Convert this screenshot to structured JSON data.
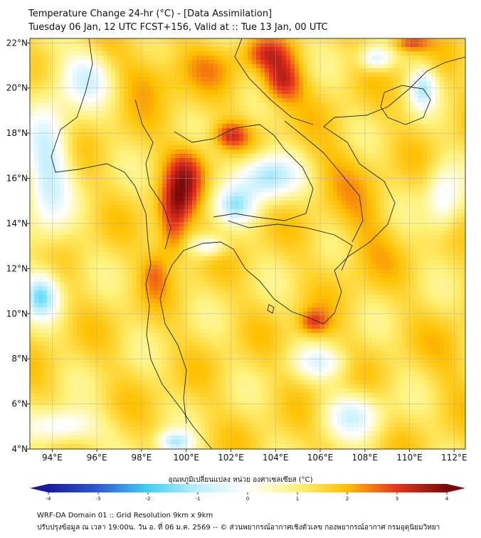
{
  "title_line1": "Temperature Change 24-hr (°C) - [Data Assimilation]",
  "title_line2": "Tuesday 06 Jan, 12 UTC FCST+156, Valid at :: Tue 13 Jan, 00 UTC",
  "axis": {
    "lon_min": 93,
    "lon_max": 112.5,
    "lat_min": 4,
    "lat_max": 22.2,
    "lon_ticks": [
      "94°E",
      "96°E",
      "98°E",
      "100°E",
      "102°E",
      "104°E",
      "106°E",
      "108°E",
      "110°E",
      "112°E"
    ],
    "lon_values": [
      94,
      96,
      98,
      100,
      102,
      104,
      106,
      108,
      110,
      112
    ],
    "lat_ticks": [
      "4°N",
      "6°N",
      "8°N",
      "10°N",
      "12°N",
      "14°N",
      "16°N",
      "18°N",
      "20°N",
      "22°N"
    ],
    "lat_values": [
      4,
      6,
      8,
      10,
      12,
      14,
      16,
      18,
      20,
      22
    ],
    "grid": true
  },
  "colorbar": {
    "label": "อุณหภูมิเปลี่ยนแปลง หน่วย องศาเซลเซียส (°C)",
    "min": -4,
    "max": 4,
    "tick_labels": [
      "-4",
      "-3",
      "-2",
      "-1",
      "0",
      "1",
      "2",
      "3",
      "4"
    ],
    "tick_values": [
      -4,
      -3,
      -2,
      -1,
      0,
      1,
      2,
      3,
      4
    ],
    "extend": "both"
  },
  "colors": {
    "deep_blue": "#1a1a9e",
    "cyan": "#3dd3f0",
    "light_cyan": "#bfefff",
    "white": "#ffffff",
    "yellow": "#ffe03a",
    "orange": "#ffa500",
    "red": "#e8321e",
    "dark_red": "#7a0a0a"
  },
  "field": {
    "background_value": 1.4,
    "features": [
      {
        "lon": 100.0,
        "lat": 16.3,
        "value": 3.1,
        "sx": 0.9,
        "sy": 1.2
      },
      {
        "lon": 99.4,
        "lat": 13.6,
        "value": 3.0,
        "sx": 0.7,
        "sy": 1.3
      },
      {
        "lon": 99.6,
        "lat": 15.0,
        "value": 2.6,
        "sx": 0.8,
        "sy": 1.0
      },
      {
        "lon": 102.0,
        "lat": 17.9,
        "value": 3.0,
        "sx": 0.8,
        "sy": 0.6
      },
      {
        "lon": 104.3,
        "lat": 20.3,
        "value": 3.3,
        "sx": 0.9,
        "sy": 1.0
      },
      {
        "lon": 103.6,
        "lat": 21.5,
        "value": 2.6,
        "sx": 1.0,
        "sy": 0.7
      },
      {
        "lon": 98.6,
        "lat": 11.8,
        "value": 2.3,
        "sx": 0.6,
        "sy": 1.0
      },
      {
        "lon": 98.3,
        "lat": 20.5,
        "value": 2.2,
        "sx": 1.4,
        "sy": 1.2
      },
      {
        "lon": 101.0,
        "lat": 21.0,
        "value": 2.0,
        "sx": 1.5,
        "sy": 1.0
      },
      {
        "lon": 105.7,
        "lat": 9.6,
        "value": 2.9,
        "sx": 0.7,
        "sy": 0.6
      },
      {
        "lon": 108.0,
        "lat": 13.5,
        "value": 2.0,
        "sx": 1.2,
        "sy": 2.0
      },
      {
        "lon": 106.5,
        "lat": 16.5,
        "value": 1.9,
        "sx": 1.5,
        "sy": 1.5
      },
      {
        "lon": 103.6,
        "lat": 16.1,
        "value": -1.3,
        "sx": 1.4,
        "sy": 1.0
      },
      {
        "lon": 102.2,
        "lat": 14.8,
        "value": -0.6,
        "sx": 0.9,
        "sy": 0.8
      },
      {
        "lon": 101.0,
        "lat": 13.0,
        "value": -0.3,
        "sx": 0.8,
        "sy": 0.5
      },
      {
        "lon": 93.5,
        "lat": 10.8,
        "value": -1.2,
        "sx": 0.8,
        "sy": 1.0
      },
      {
        "lon": 93.8,
        "lat": 16.5,
        "value": -0.8,
        "sx": 1.0,
        "sy": 3.0
      },
      {
        "lon": 95.5,
        "lat": 20.5,
        "value": -0.4,
        "sx": 1.2,
        "sy": 1.2
      },
      {
        "lon": 94.5,
        "lat": 5.0,
        "value": -0.5,
        "sx": 1.5,
        "sy": 0.8
      },
      {
        "lon": 99.5,
        "lat": 4.3,
        "value": -0.9,
        "sx": 0.8,
        "sy": 0.5
      },
      {
        "lon": 107.5,
        "lat": 5.5,
        "value": -0.3,
        "sx": 1.3,
        "sy": 1.0
      },
      {
        "lon": 106.0,
        "lat": 7.8,
        "value": 0.0,
        "sx": 1.2,
        "sy": 0.7
      },
      {
        "lon": 108.5,
        "lat": 21.3,
        "value": -0.6,
        "sx": 0.7,
        "sy": 0.5
      },
      {
        "lon": 110.6,
        "lat": 20.0,
        "value": -0.7,
        "sx": 0.6,
        "sy": 0.9
      },
      {
        "lon": 111.5,
        "lat": 15.0,
        "value": -0.2,
        "sx": 0.8,
        "sy": 1.5
      },
      {
        "lon": 112.0,
        "lat": 8.0,
        "value": 1.8,
        "sx": 1.0,
        "sy": 1.5
      },
      {
        "lon": 110.0,
        "lat": 22.0,
        "value": 3.0,
        "sx": 0.8,
        "sy": 0.4
      }
    ]
  },
  "footer_line1": "WRF-DA Domain 01 :: Grid Resolution 9km x 9km",
  "footer_line2": "ปรับปรุงข้อมูล ณ เวลา 19:00น. วัน อ. ที่ 06 ม.ค. 2569 -- © ส่วนพยากรณ์อากาศเชิงตัวเลข กองพยากรณ์อากาศ กรมอุตุนิยมวิทยา"
}
